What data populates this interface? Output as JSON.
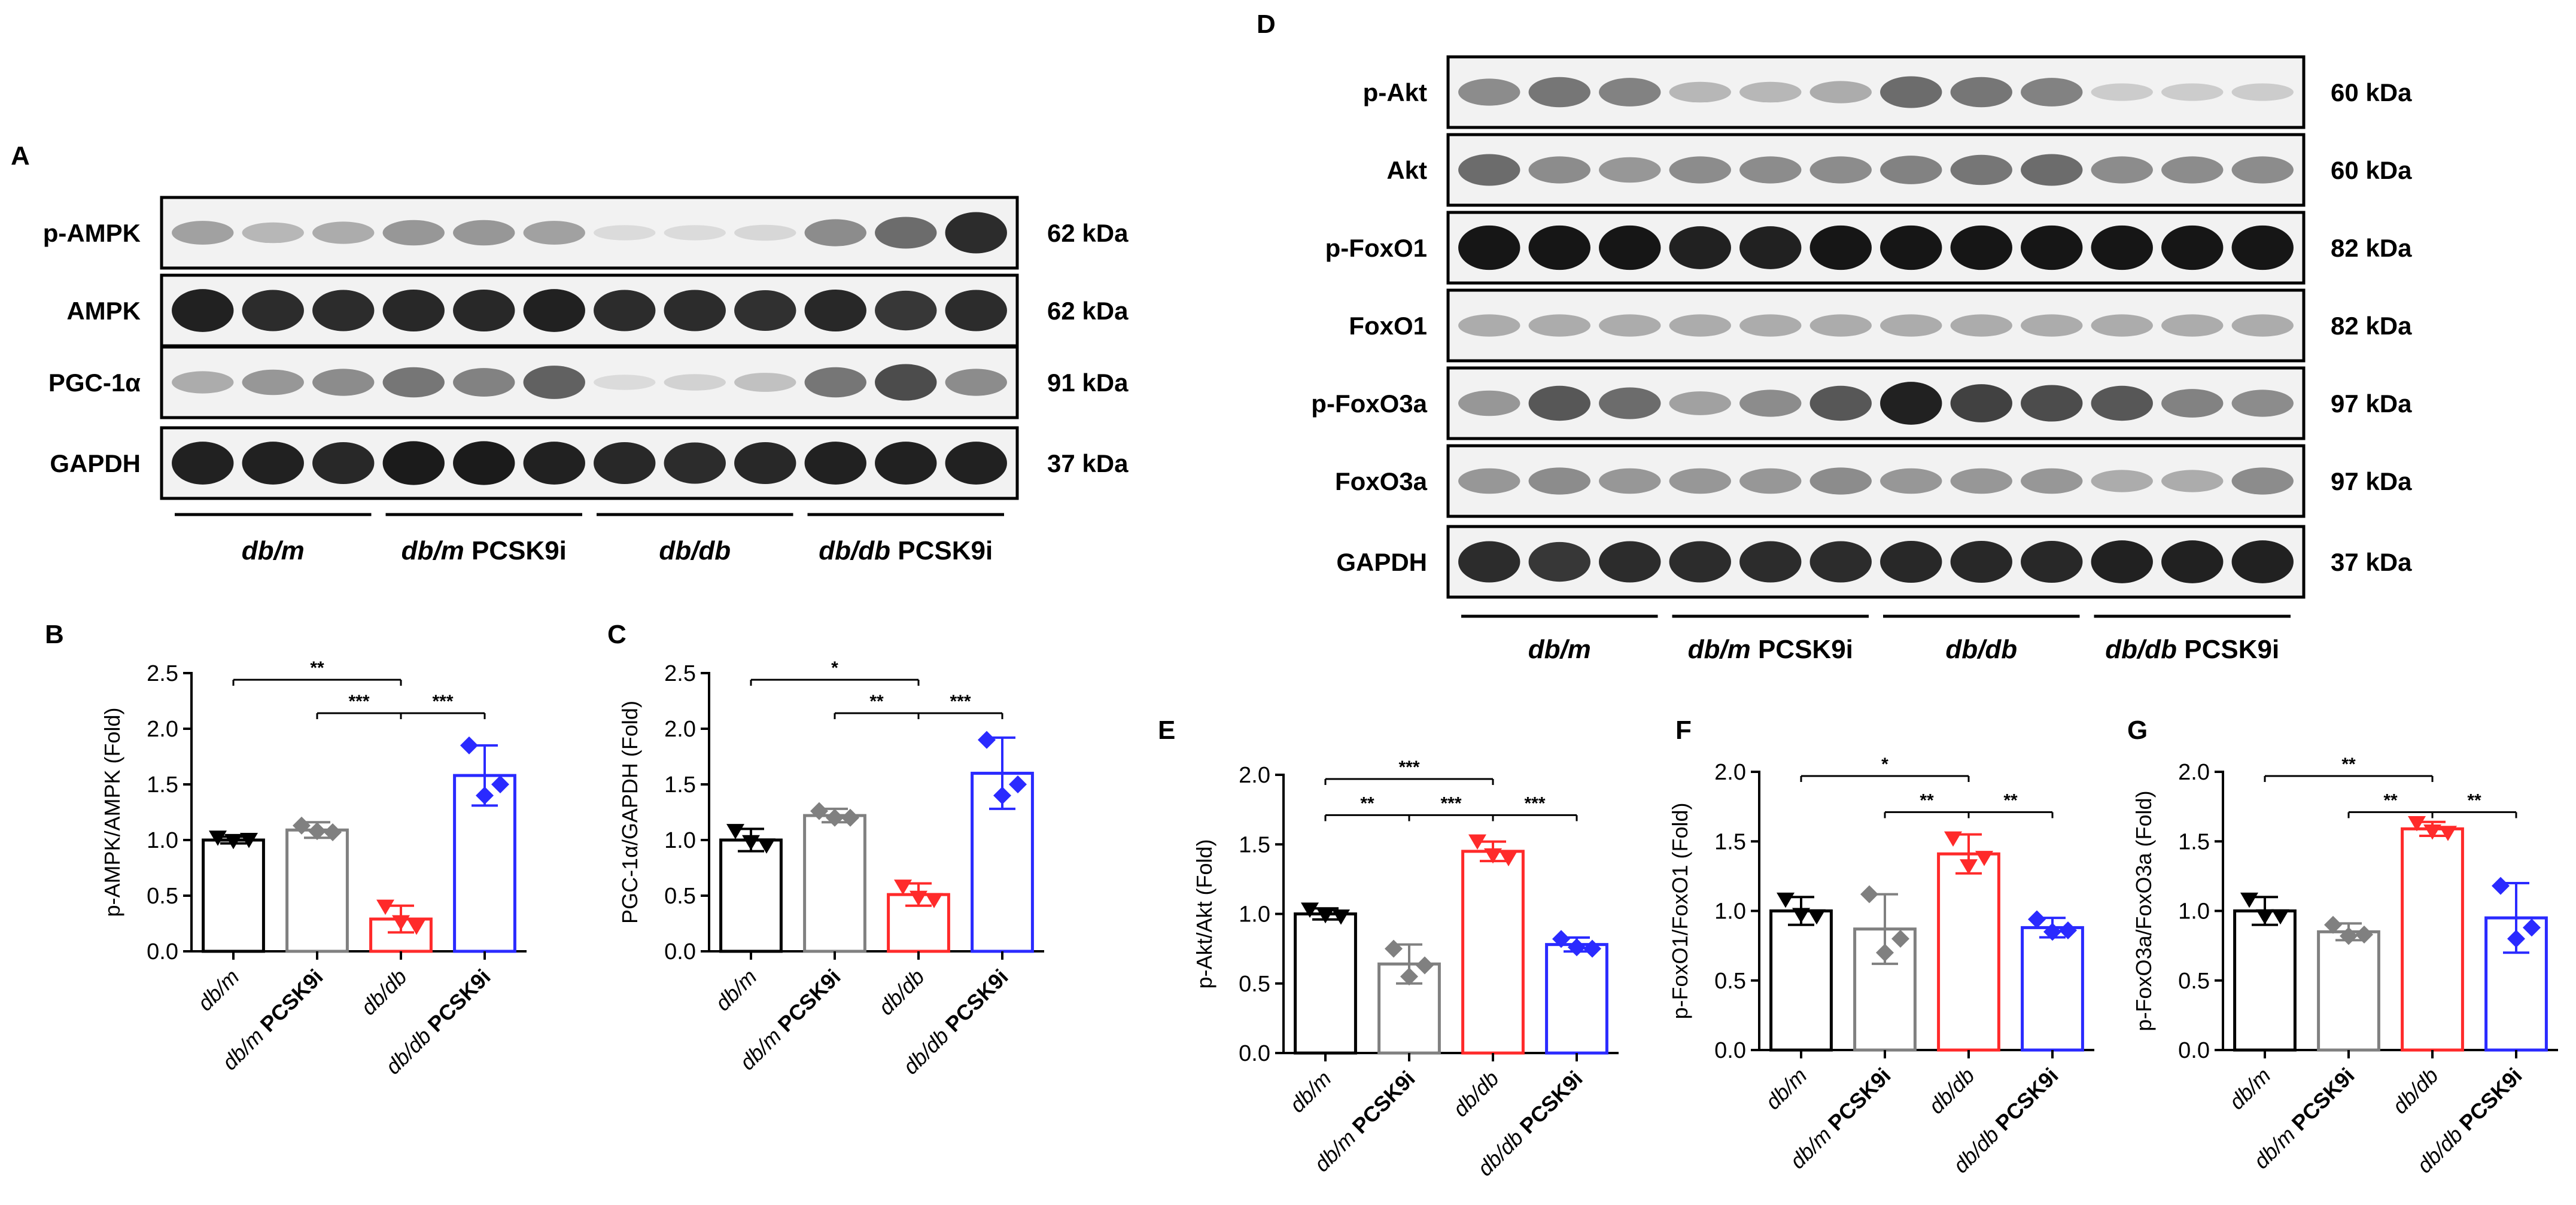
{
  "panel_labels": {
    "A": "A",
    "B": "B",
    "C": "C",
    "D": "D",
    "E": "E",
    "F": "F",
    "G": "G"
  },
  "blotA": {
    "rows": [
      {
        "label": "p-AMPK",
        "kda": "62 kDa",
        "strength": [
          0.35,
          0.25,
          0.3,
          0.4,
          0.4,
          0.35,
          0.08,
          0.08,
          0.1,
          0.45,
          0.6,
          0.9
        ]
      },
      {
        "label": "AMPK",
        "kda": "62 kDa",
        "strength": [
          0.95,
          0.9,
          0.9,
          0.92,
          0.92,
          0.95,
          0.9,
          0.9,
          0.88,
          0.92,
          0.85,
          0.9
        ]
      },
      {
        "label": "PGC-1α",
        "kda": "91 kDa",
        "strength": [
          0.3,
          0.4,
          0.45,
          0.55,
          0.5,
          0.65,
          0.08,
          0.12,
          0.2,
          0.55,
          0.75,
          0.45
        ]
      },
      {
        "label": "GAPDH",
        "kda": "37 kDa",
        "strength": [
          0.95,
          0.95,
          0.92,
          0.98,
          0.98,
          0.95,
          0.92,
          0.9,
          0.92,
          0.95,
          0.95,
          0.95
        ]
      }
    ],
    "groups": [
      {
        "it": "db/m",
        "rest": ""
      },
      {
        "it": "db/m",
        "rest": " PCSK9i"
      },
      {
        "it": "db/db",
        "rest": ""
      },
      {
        "it": "db/db",
        "rest": " PCSK9i"
      }
    ]
  },
  "blotD": {
    "rows": [
      {
        "label": "p-Akt",
        "kda": "60 kDa",
        "strength": [
          0.45,
          0.55,
          0.5,
          0.25,
          0.25,
          0.3,
          0.6,
          0.55,
          0.5,
          0.15,
          0.15,
          0.15
        ]
      },
      {
        "label": "Akt",
        "kda": "60 kDa",
        "strength": [
          0.6,
          0.45,
          0.4,
          0.45,
          0.45,
          0.45,
          0.5,
          0.55,
          0.6,
          0.45,
          0.45,
          0.45
        ]
      },
      {
        "label": "p-FoxO1",
        "kda": "82 kDa",
        "strength": [
          1,
          1,
          1,
          0.95,
          0.95,
          1,
          1,
          1,
          1,
          1,
          1,
          1
        ]
      },
      {
        "label": "FoxO1",
        "kda": "82 kDa",
        "strength": [
          0.3,
          0.3,
          0.3,
          0.3,
          0.3,
          0.3,
          0.3,
          0.3,
          0.3,
          0.3,
          0.3,
          0.3
        ]
      },
      {
        "label": "p-FoxO3a",
        "kda": "97 kDa",
        "strength": [
          0.4,
          0.7,
          0.6,
          0.35,
          0.45,
          0.7,
          0.95,
          0.8,
          0.75,
          0.7,
          0.5,
          0.45
        ]
      },
      {
        "label": "FoxO3a",
        "kda": "97 kDa",
        "strength": [
          0.4,
          0.45,
          0.4,
          0.4,
          0.4,
          0.45,
          0.4,
          0.4,
          0.4,
          0.3,
          0.3,
          0.45
        ]
      },
      {
        "label": "GAPDH",
        "kda": "37 kDa",
        "strength": [
          0.9,
          0.85,
          0.9,
          0.9,
          0.9,
          0.9,
          0.92,
          0.92,
          0.92,
          0.95,
          0.95,
          0.95
        ]
      }
    ],
    "groups": [
      {
        "it": "db/m",
        "rest": ""
      },
      {
        "it": "db/m",
        "rest": " PCSK9i"
      },
      {
        "it": "db/db",
        "rest": ""
      },
      {
        "it": "db/db",
        "rest": " PCSK9i"
      }
    ]
  },
  "chart_data": [
    {
      "panel": "B",
      "type": "bar",
      "ylabel": "p-AMPK/AMPK (Fold)",
      "ylim": [
        0,
        2.5
      ],
      "yticks": [
        "0.0",
        "0.5",
        "1.0",
        "1.5",
        "2.0",
        "2.5"
      ],
      "ytick_values": [
        0,
        0.5,
        1.0,
        1.5,
        2.0,
        2.5
      ],
      "categories": [
        {
          "it": "db/m",
          "rest": ""
        },
        {
          "it": "db/m",
          "rest": " PCSK9i"
        },
        {
          "it": "db/db",
          "rest": ""
        },
        {
          "it": "db/db",
          "rest": " PCSK9i"
        }
      ],
      "values": [
        1.0,
        1.09,
        0.29,
        1.58
      ],
      "err": [
        0.03,
        0.07,
        0.12,
        0.27
      ],
      "points": [
        [
          1.02,
          0.99,
          1.0
        ],
        [
          1.13,
          1.08,
          1.07
        ],
        [
          0.4,
          0.26,
          0.22
        ],
        [
          1.85,
          1.4,
          1.5
        ]
      ],
      "colors": [
        "#000000",
        "#808080",
        "#ff2a2a",
        "#2a2aff"
      ],
      "markers": [
        "tri-down",
        "diamond",
        "tri-down",
        "diamond"
      ],
      "sig": [
        {
          "from": 0,
          "to": 2,
          "label": "**",
          "y": 2.44
        },
        {
          "from": 1,
          "to": 2,
          "label": "***",
          "y": 2.14
        },
        {
          "from": 2,
          "to": 3,
          "label": "***",
          "y": 2.14
        }
      ]
    },
    {
      "panel": "C",
      "type": "bar",
      "ylabel": "PGC-1α/GAPDH (Fold)",
      "ylim": [
        0,
        2.5
      ],
      "yticks": [
        "0.0",
        "0.5",
        "1.0",
        "1.5",
        "2.0",
        "2.5"
      ],
      "ytick_values": [
        0,
        0.5,
        1.0,
        1.5,
        2.0,
        2.5
      ],
      "categories": [
        {
          "it": "db/m",
          "rest": ""
        },
        {
          "it": "db/m",
          "rest": " PCSK9i"
        },
        {
          "it": "db/db",
          "rest": ""
        },
        {
          "it": "db/db",
          "rest": " PCSK9i"
        }
      ],
      "values": [
        1.0,
        1.22,
        0.51,
        1.6
      ],
      "err": [
        0.1,
        0.06,
        0.1,
        0.32
      ],
      "points": [
        [
          1.08,
          0.98,
          0.95
        ],
        [
          1.26,
          1.2,
          1.2
        ],
        [
          0.58,
          0.48,
          0.46
        ],
        [
          1.9,
          1.4,
          1.5
        ]
      ],
      "colors": [
        "#000000",
        "#808080",
        "#ff2a2a",
        "#2a2aff"
      ],
      "markers": [
        "tri-down",
        "diamond",
        "tri-down",
        "diamond"
      ],
      "sig": [
        {
          "from": 0,
          "to": 2,
          "label": "*",
          "y": 2.44
        },
        {
          "from": 1,
          "to": 2,
          "label": "**",
          "y": 2.14
        },
        {
          "from": 2,
          "to": 3,
          "label": "***",
          "y": 2.14
        }
      ]
    },
    {
      "panel": "E",
      "type": "bar",
      "ylabel": "p-Akt/Akt (Fold)",
      "ylim": [
        0,
        2.0
      ],
      "yticks": [
        "0.0",
        "0.5",
        "1.0",
        "1.5",
        "2.0"
      ],
      "ytick_values": [
        0,
        0.5,
        1.0,
        1.5,
        2.0
      ],
      "categories": [
        {
          "it": "db/m",
          "rest": ""
        },
        {
          "it": "db/m",
          "rest": " PCSK9i"
        },
        {
          "it": "db/db",
          "rest": ""
        },
        {
          "it": "db/db",
          "rest": " PCSK9i"
        }
      ],
      "values": [
        1.0,
        0.64,
        1.45,
        0.78
      ],
      "err": [
        0.04,
        0.14,
        0.07,
        0.05
      ],
      "points": [
        [
          1.03,
          0.99,
          0.98
        ],
        [
          0.75,
          0.55,
          0.63
        ],
        [
          1.52,
          1.42,
          1.4
        ],
        [
          0.82,
          0.76,
          0.75
        ]
      ],
      "colors": [
        "#000000",
        "#808080",
        "#ff2a2a",
        "#2a2aff"
      ],
      "markers": [
        "tri-down",
        "diamond",
        "tri-down",
        "diamond"
      ],
      "sig": [
        {
          "from": 0,
          "to": 2,
          "label": "***",
          "y": 1.97
        },
        {
          "from": 0,
          "to": 1,
          "label": "**",
          "y": 1.71
        },
        {
          "from": 1,
          "to": 2,
          "label": "***",
          "y": 1.71
        },
        {
          "from": 2,
          "to": 3,
          "label": "***",
          "y": 1.71
        }
      ]
    },
    {
      "panel": "F",
      "type": "bar",
      "ylabel": "p-FoxO1/FoxO1 (Fold)",
      "ylim": [
        0,
        2.0
      ],
      "yticks": [
        "0.0",
        "0.5",
        "1.0",
        "1.5",
        "2.0"
      ],
      "ytick_values": [
        0,
        0.5,
        1.0,
        1.5,
        2.0
      ],
      "categories": [
        {
          "it": "db/m",
          "rest": ""
        },
        {
          "it": "db/m",
          "rest": " PCSK9i"
        },
        {
          "it": "db/db",
          "rest": ""
        },
        {
          "it": "db/db",
          "rest": " PCSK9i"
        }
      ],
      "values": [
        1.0,
        0.87,
        1.41,
        0.88
      ],
      "err": [
        0.1,
        0.25,
        0.14,
        0.07
      ],
      "points": [
        [
          1.08,
          0.97,
          0.96
        ],
        [
          1.12,
          0.7,
          0.8
        ],
        [
          1.52,
          1.32,
          1.38
        ],
        [
          0.94,
          0.85,
          0.86
        ]
      ],
      "colors": [
        "#000000",
        "#808080",
        "#ff2a2a",
        "#2a2aff"
      ],
      "markers": [
        "tri-down",
        "diamond",
        "tri-down",
        "diamond"
      ],
      "sig": [
        {
          "from": 0,
          "to": 2,
          "label": "*",
          "y": 1.97
        },
        {
          "from": 1,
          "to": 2,
          "label": "**",
          "y": 1.71
        },
        {
          "from": 2,
          "to": 3,
          "label": "**",
          "y": 1.71
        }
      ]
    },
    {
      "panel": "G",
      "type": "bar",
      "ylabel": "p-FoxO3a/FoxO3a (Fold)",
      "ylim": [
        0,
        2.0
      ],
      "yticks": [
        "0.0",
        "0.5",
        "1.0",
        "1.5",
        "2.0"
      ],
      "ytick_values": [
        0,
        0.5,
        1.0,
        1.5,
        2.0
      ],
      "categories": [
        {
          "it": "db/m",
          "rest": ""
        },
        {
          "it": "db/m",
          "rest": " PCSK9i"
        },
        {
          "it": "db/db",
          "rest": ""
        },
        {
          "it": "db/db",
          "rest": " PCSK9i"
        }
      ],
      "values": [
        1.0,
        0.85,
        1.59,
        0.95
      ],
      "err": [
        0.1,
        0.06,
        0.05,
        0.25
      ],
      "points": [
        [
          1.08,
          0.96,
          0.96
        ],
        [
          0.9,
          0.82,
          0.83
        ],
        [
          1.63,
          1.57,
          1.56
        ],
        [
          1.18,
          0.8,
          0.88
        ]
      ],
      "colors": [
        "#000000",
        "#808080",
        "#ff2a2a",
        "#2a2aff"
      ],
      "markers": [
        "tri-down",
        "diamond",
        "tri-down",
        "diamond"
      ],
      "sig": [
        {
          "from": 0,
          "to": 2,
          "label": "**",
          "y": 1.97
        },
        {
          "from": 1,
          "to": 2,
          "label": "**",
          "y": 1.71
        },
        {
          "from": 2,
          "to": 3,
          "label": "**",
          "y": 1.71
        }
      ]
    }
  ]
}
